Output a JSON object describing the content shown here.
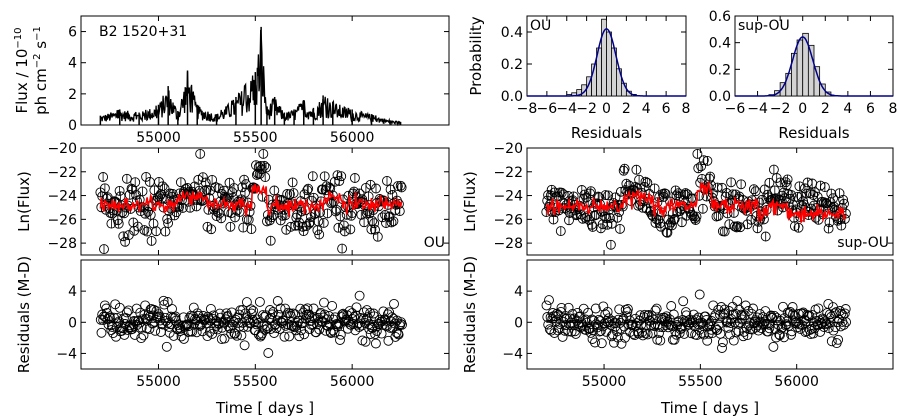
{
  "chart_data": [
    {
      "id": "lightcurve",
      "type": "line",
      "annotation": "B2 1520+31",
      "ylabel": [
        "Flux / 10",
        "−10",
        "ph cm",
        "−2",
        " s",
        "−1"
      ],
      "xlim": [
        54600,
        56500
      ],
      "ylim": [
        0,
        7
      ],
      "xticks": [
        55000,
        55500,
        56000
      ],
      "yticks": [
        0,
        2,
        4,
        6
      ],
      "x": [
        54700,
        54800,
        54900,
        55000,
        55050,
        55100,
        55150,
        55200,
        55300,
        55400,
        55500,
        55530,
        55560,
        55600,
        55650,
        55700,
        55750,
        55800,
        55850,
        55900,
        56000,
        56100,
        56200,
        56250
      ],
      "y": [
        0.6,
        1.0,
        0.8,
        1.3,
        2.5,
        0.9,
        3.5,
        1.3,
        0.7,
        1.8,
        3.4,
        6.3,
        1.2,
        1.8,
        0.8,
        1.0,
        1.6,
        1.1,
        1.9,
        1.5,
        1.0,
        0.7,
        0.3,
        0.2
      ]
    },
    {
      "id": "hist-ou",
      "type": "bar",
      "annotation": "OU",
      "xlabel": "Residuals",
      "ylabel": "Probability",
      "xlim": [
        -8,
        8
      ],
      "ylim": [
        0,
        0.5
      ],
      "xticks": [
        -8,
        -6,
        -4,
        -2,
        0,
        2,
        4,
        6,
        8
      ],
      "xticklabels": [
        "−8",
        "−6",
        "−4",
        "−2",
        "0",
        "2",
        "4",
        "6",
        "8"
      ],
      "yticks": [
        0.0,
        0.2,
        0.4
      ],
      "yticklabels": [
        "0.0",
        "0.2",
        "0.4"
      ],
      "bin_edges": [
        -4,
        -3.5,
        -3,
        -2.5,
        -2,
        -1.5,
        -1,
        -0.5,
        0,
        0.5,
        1,
        1.5,
        2,
        2.5,
        3
      ],
      "values": [
        0.01,
        0.02,
        0.04,
        0.07,
        0.12,
        0.2,
        0.3,
        0.48,
        0.4,
        0.3,
        0.17,
        0.08,
        0.03,
        0.01
      ],
      "fit_sigma": 0.95
    },
    {
      "id": "hist-supou",
      "type": "bar",
      "annotation": "sup-OU",
      "xlabel": "Residuals",
      "xlim": [
        -6,
        8
      ],
      "ylim": [
        0,
        0.6
      ],
      "xticks": [
        -6,
        -4,
        -2,
        0,
        2,
        4,
        6,
        8
      ],
      "xticklabels": [
        "−6",
        "−4",
        "−2",
        "0",
        "2",
        "4",
        "6",
        "8"
      ],
      "yticks": [
        0.0,
        0.2,
        0.4,
        0.6
      ],
      "yticklabels": [
        "0.0",
        "0.2",
        "0.4",
        "0.6"
      ],
      "bin_edges": [
        -3,
        -2.5,
        -2,
        -1.5,
        -1,
        -0.5,
        0,
        0.5,
        1,
        1.5,
        2,
        2.5
      ],
      "values": [
        0.01,
        0.04,
        0.1,
        0.17,
        0.32,
        0.42,
        0.47,
        0.38,
        0.22,
        0.09,
        0.03
      ],
      "fit_sigma": 0.9
    },
    {
      "id": "lnflux-ou",
      "type": "scatter",
      "annotation": "OU",
      "ylabel": "Ln(Flux)",
      "xlim": [
        54600,
        56500
      ],
      "ylim": [
        -29,
        -20
      ],
      "xticks": [
        55000,
        55500,
        56000
      ],
      "yticks": [
        -28,
        -26,
        -24,
        -22,
        -20
      ],
      "yticklabels": [
        "−28",
        "−26",
        "−24",
        "−22",
        "−20"
      ],
      "model_level": -24.8
    },
    {
      "id": "lnflux-supou",
      "type": "scatter",
      "annotation": "sup-OU",
      "ylabel": "Ln(Flux)",
      "xlim": [
        54600,
        56500
      ],
      "ylim": [
        -29,
        -20
      ],
      "xticks": [
        55000,
        55500,
        56000
      ],
      "yticks": [
        -28,
        -26,
        -24,
        -22,
        -20
      ],
      "yticklabels": [
        "−28",
        "−26",
        "−24",
        "−22",
        "−20"
      ],
      "model_level": -25.3
    },
    {
      "id": "resid-ou",
      "type": "scatter",
      "ylabel": "Residuals (M-D)",
      "xlabel": "Time [ days ]",
      "xlim": [
        54600,
        56500
      ],
      "ylim": [
        -6,
        8
      ],
      "xticks": [
        55000,
        55500,
        56000
      ],
      "yticks": [
        -4,
        0,
        4
      ],
      "yticklabels": [
        "−4",
        "0",
        "4"
      ]
    },
    {
      "id": "resid-supou",
      "type": "scatter",
      "ylabel": "Residuals (M-D)",
      "xlabel": "Time [ days ]",
      "xlim": [
        54600,
        56500
      ],
      "ylim": [
        -6,
        8
      ],
      "xticks": [
        55000,
        55500,
        56000
      ],
      "yticks": [
        -4,
        0,
        4
      ],
      "yticklabels": [
        "−4",
        "0",
        "4"
      ]
    }
  ]
}
